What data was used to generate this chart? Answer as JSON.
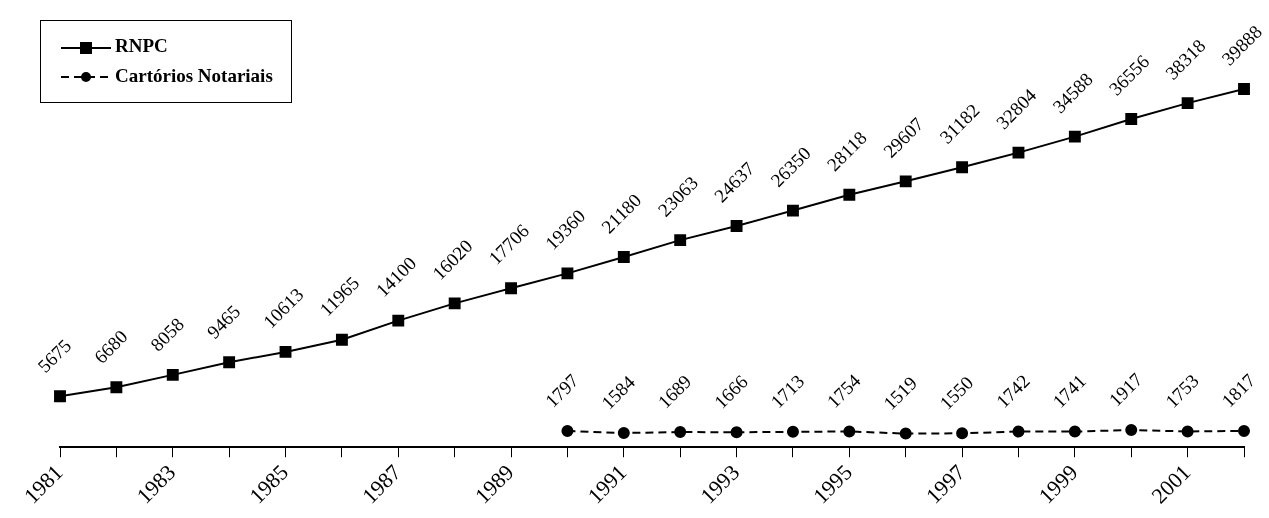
{
  "chart_data": {
    "type": "line",
    "categories": [
      "1981",
      null,
      "1983",
      null,
      "1985",
      null,
      "1987",
      null,
      "1989",
      null,
      "1991",
      null,
      "1993",
      null,
      "1995",
      null,
      "1997",
      null,
      "1999",
      null,
      "2001",
      null
    ],
    "series": [
      {
        "name": "RNPC",
        "color": "#000000",
        "marker": "square",
        "line_style": "solid",
        "values": [
          5675,
          6680,
          8058,
          9465,
          10613,
          11965,
          14100,
          16020,
          17706,
          19360,
          21180,
          23063,
          24637,
          26350,
          28118,
          29607,
          31182,
          32804,
          34588,
          36556,
          38318,
          39888
        ]
      },
      {
        "name": "Cartórios Notariais",
        "color": "#000000",
        "marker": "circle",
        "line_style": "dashed",
        "values": [
          null,
          null,
          null,
          null,
          null,
          null,
          null,
          null,
          null,
          1797,
          1584,
          1689,
          1666,
          1713,
          1754,
          1519,
          1550,
          1742,
          1741,
          1917,
          1753,
          1817
        ]
      }
    ],
    "data_labels": true,
    "legend": "top left",
    "grid": false
  }
}
